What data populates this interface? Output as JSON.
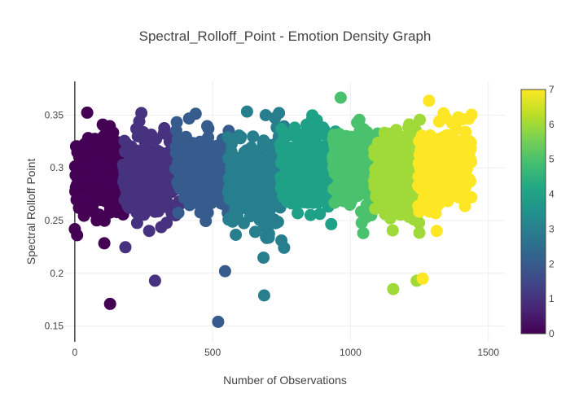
{
  "chart_data": {
    "type": "scatter",
    "title": "Spectral_Rolloff_Point - Emotion Density Graph",
    "xlabel": "Number of Observations",
    "ylabel": "Spectral Rolloff Point",
    "xlim": [
      -35,
      1560
    ],
    "ylim": [
      0.135,
      0.382
    ],
    "x_ticks": [
      0,
      500,
      1000,
      1500
    ],
    "y_ticks": [
      0.15,
      0.2,
      0.25,
      0.3,
      0.35
    ],
    "y_tick_labels": [
      "0.15",
      "0.2",
      "0.25",
      "0.3",
      "0.35"
    ],
    "grid": true,
    "colorbar": {
      "min": 0,
      "max": 7,
      "ticks": [
        0,
        1,
        2,
        3,
        4,
        5,
        6,
        7
      ],
      "colorscale": "Viridis"
    },
    "clusters": [
      {
        "emotion": 0,
        "x_range": [
          0,
          190
        ],
        "y_center": 0.295,
        "y_spread": 0.035
      },
      {
        "emotion": 1,
        "x_range": [
          175,
          380
        ],
        "y_center": 0.295,
        "y_spread": 0.037
      },
      {
        "emotion": 2,
        "x_range": [
          365,
          570
        ],
        "y_center": 0.298,
        "y_spread": 0.035
      },
      {
        "emotion": 3,
        "x_range": [
          555,
          760
        ],
        "y_center": 0.287,
        "y_spread": 0.038
      },
      {
        "emotion": 4,
        "x_range": [
          745,
          950
        ],
        "y_center": 0.3,
        "y_spread": 0.037
      },
      {
        "emotion": 5,
        "x_range": [
          935,
          1100
        ],
        "y_center": 0.3,
        "y_spread": 0.036
      },
      {
        "emotion": 6,
        "x_range": [
          1085,
          1260
        ],
        "y_center": 0.295,
        "y_spread": 0.037
      },
      {
        "emotion": 7,
        "x_range": [
          1245,
          1440
        ],
        "y_center": 0.302,
        "y_spread": 0.035
      }
    ],
    "outliers": [
      {
        "x": 128,
        "y": 0.171,
        "emotion": 0
      },
      {
        "x": 520,
        "y": 0.154,
        "emotion": 2
      },
      {
        "x": 687,
        "y": 0.179,
        "emotion": 3
      },
      {
        "x": 291,
        "y": 0.193,
        "emotion": 1
      },
      {
        "x": 1155,
        "y": 0.185,
        "emotion": 6
      },
      {
        "x": 1240,
        "y": 0.193,
        "emotion": 6
      },
      {
        "x": 1262,
        "y": 0.195,
        "emotion": 7
      },
      {
        "x": 545,
        "y": 0.202,
        "emotion": 2
      }
    ]
  }
}
